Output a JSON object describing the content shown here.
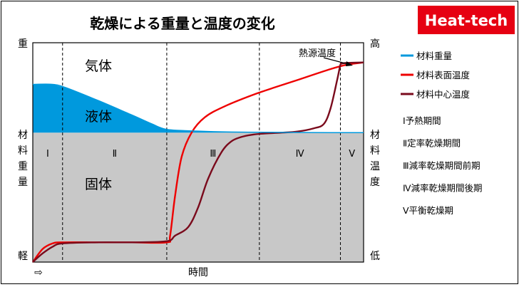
{
  "header": {
    "title": "乾燥による重量と温度の変化",
    "brand": "Heat-tech"
  },
  "chart_data": {
    "type": "line",
    "title": "乾燥による重量と温度の変化",
    "xlabel": "時間",
    "xlabel_arrow": "⇨",
    "y_left": {
      "label": "材料重量",
      "top": "重",
      "bottom": "軽"
    },
    "y_right": {
      "label": "材料温度",
      "top": "高",
      "bottom": "低"
    },
    "y_units": "relative (0=軽/低, 100=重/高)",
    "x_range": [
      0,
      100
    ],
    "y_range": [
      0,
      100
    ],
    "phase_boundaries": [
      9,
      40.5,
      68.5,
      93
    ],
    "phases": [
      {
        "roman": "Ⅰ",
        "range": [
          0,
          9
        ],
        "name": "予熱期間"
      },
      {
        "roman": "Ⅱ",
        "range": [
          9,
          40.5
        ],
        "name": "定率乾燥期間"
      },
      {
        "roman": "Ⅲ",
        "range": [
          40.5,
          68.5
        ],
        "name": "減率乾燥期間前期"
      },
      {
        "roman": "Ⅳ",
        "range": [
          68.5,
          93
        ],
        "name": "減率乾燥期間後期"
      },
      {
        "roman": "Ⅴ",
        "range": [
          93,
          100
        ],
        "name": "平衡乾燥期"
      }
    ],
    "region_labels": {
      "gas": "気体",
      "liquid": "液体",
      "solid": "固体"
    },
    "solid_level": 59,
    "series": [
      {
        "name": "材料重量",
        "color": "#0099dd",
        "x": [
          0,
          6,
          10,
          20,
          30,
          36,
          40.5,
          50,
          60,
          70,
          80,
          90,
          100
        ],
        "y": [
          81,
          81,
          79.5,
          73.5,
          67,
          63,
          60.5,
          59.7,
          59.3,
          59.2,
          59.1,
          59,
          59
        ]
      },
      {
        "name": "材料表面温度",
        "color": "#ee0000",
        "x": [
          0,
          3,
          6,
          9,
          20,
          30,
          40.5,
          41.5,
          43,
          45,
          48,
          52,
          58,
          68,
          80,
          90,
          95,
          100
        ],
        "y": [
          0,
          6,
          8.5,
          9,
          9,
          9,
          9,
          12,
          30,
          48,
          59,
          66,
          71,
          77,
          83,
          88,
          90,
          91
        ]
      },
      {
        "name": "材料中心温度",
        "color": "#7a0a1c",
        "x": [
          0,
          3,
          6,
          9,
          20,
          30,
          40.5,
          43,
          47,
          50,
          53,
          57,
          60,
          63,
          66,
          69,
          75,
          80,
          85,
          88,
          90,
          92,
          93,
          93.5,
          95,
          100
        ],
        "y": [
          0,
          4,
          7,
          8.5,
          9,
          9,
          9.5,
          12,
          16,
          25,
          38,
          50,
          55,
          57,
          58,
          58.5,
          59,
          59.5,
          61,
          63,
          70,
          83,
          90,
          90.5,
          90.8,
          91
        ]
      }
    ],
    "annotation": {
      "text": "熱源温度",
      "x": 96,
      "y": 91
    },
    "legend_position": "right"
  }
}
